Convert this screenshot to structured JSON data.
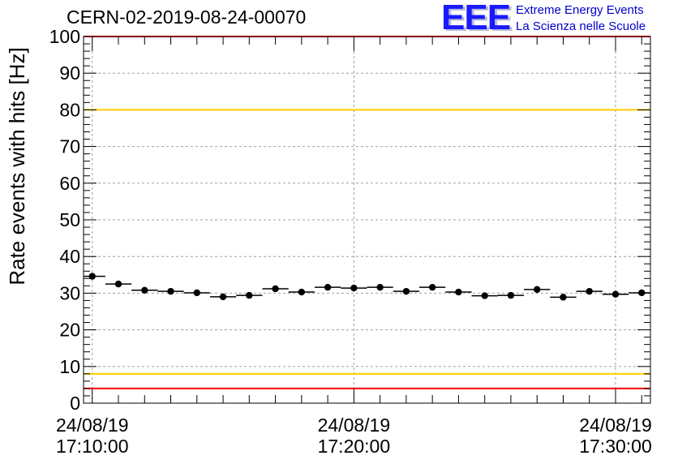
{
  "title": "CERN-02-2019-08-24-00070",
  "logo": {
    "mark": "EEE",
    "line1": "Extreme Energy Events",
    "line2": "La Scienza nelle Scuole"
  },
  "chart_data": {
    "type": "scatter",
    "ylabel": "Rate events with hits [Hz]",
    "ylim": [
      0,
      100
    ],
    "yticks": [
      0,
      10,
      20,
      30,
      40,
      50,
      60,
      70,
      80,
      90,
      100
    ],
    "xticks": [
      {
        "date": "24/08/19",
        "time": "17:10:00"
      },
      {
        "date": "24/08/19",
        "time": "17:20:00"
      },
      {
        "date": "24/08/19",
        "time": "17:30:00"
      }
    ],
    "xlim": [
      "17:09:40",
      "17:31:20"
    ],
    "x": [
      "17:10:00",
      "17:11:00",
      "17:12:00",
      "17:13:00",
      "17:14:00",
      "17:15:00",
      "17:16:00",
      "17:17:00",
      "17:18:00",
      "17:19:00",
      "17:20:00",
      "17:21:00",
      "17:22:00",
      "17:23:00",
      "17:24:00",
      "17:25:00",
      "17:26:00",
      "17:27:00",
      "17:28:00",
      "17:29:00",
      "17:30:00",
      "17:31:00"
    ],
    "values": [
      34.6,
      32.5,
      30.8,
      30.5,
      30.1,
      29.0,
      29.4,
      31.2,
      30.3,
      31.6,
      31.4,
      31.6,
      30.5,
      31.6,
      30.3,
      29.3,
      29.4,
      31.0,
      28.9,
      30.5,
      29.7,
      30.1
    ],
    "thresholds": [
      {
        "value": 100,
        "color": "#ff0000"
      },
      {
        "value": 80,
        "color": "#ffcc00"
      },
      {
        "value": 8,
        "color": "#ffcc00"
      },
      {
        "value": 4,
        "color": "#ff0000"
      }
    ],
    "grid": true,
    "colors": {
      "marker": "#000000",
      "grid": "#a0a0a0"
    }
  }
}
